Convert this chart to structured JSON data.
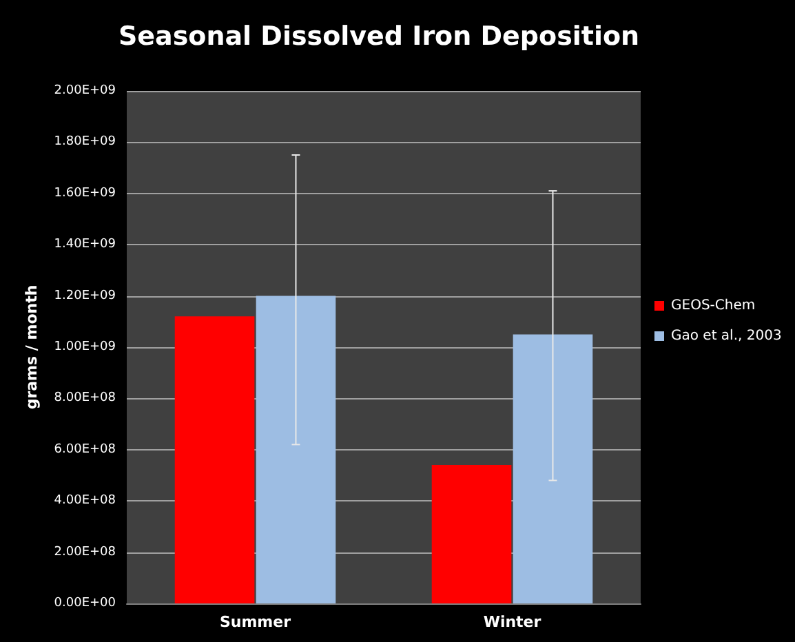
{
  "chart_data": {
    "type": "bar",
    "title": "Seasonal Dissolved Iron Deposition",
    "ylabel": "grams / month",
    "categories": [
      "Summer",
      "Winter"
    ],
    "series": [
      {
        "name": "GEOS-Chem",
        "color": "#ff0000",
        "values": [
          1120000000,
          540000000
        ]
      },
      {
        "name": "Gao et al., 2003",
        "color": "#9dbde3",
        "values": [
          1200000000,
          1050000000
        ],
        "errors": [
          [
            620000000,
            1750000000
          ],
          [
            480000000,
            1610000000
          ]
        ]
      }
    ],
    "ylim": [
      0,
      2000000000
    ],
    "yticks": [
      {
        "value": 0,
        "label": "0.00E+00"
      },
      {
        "value": 200000000,
        "label": "2.00E+08"
      },
      {
        "value": 400000000,
        "label": "4.00E+08"
      },
      {
        "value": 600000000,
        "label": "6.00E+08"
      },
      {
        "value": 800000000,
        "label": "8.00E+08"
      },
      {
        "value": 1000000000,
        "label": "1.00E+09"
      },
      {
        "value": 1200000000,
        "label": "1.20E+09"
      },
      {
        "value": 1400000000,
        "label": "1.40E+09"
      },
      {
        "value": 1600000000,
        "label": "1.60E+09"
      },
      {
        "value": 1800000000,
        "label": "1.80E+09"
      },
      {
        "value": 2000000000,
        "label": "2.00E+09"
      }
    ],
    "grid": "y",
    "legend": "right"
  }
}
